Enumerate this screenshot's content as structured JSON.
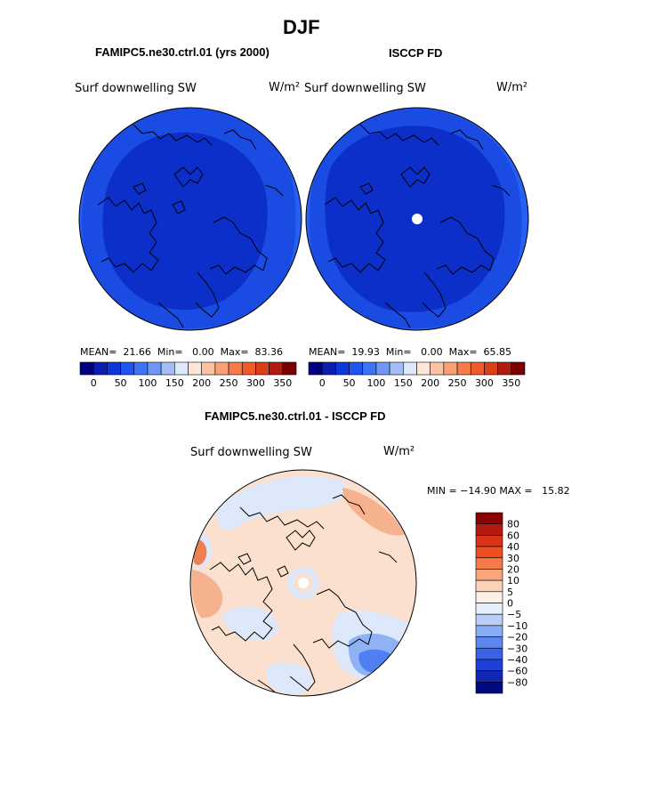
{
  "figure": {
    "title": "DJF",
    "panel_left_title": "FAMIPC5.ne30.ctrl.01 (yrs 2000)",
    "panel_right_title": "ISCCP FD",
    "panel_bottom_title": "FAMIPC5.ne30.ctrl.01 - ISCCP FD"
  },
  "colors": {
    "dark_blue": "#0a2fc8",
    "mid_blue": "#1c4fe6",
    "light_blue_ring": "#2d62f0",
    "diff_pos_light": "#fbe0cf",
    "diff_pos_mid": "#f6b18f",
    "diff_pos_strong": "#ef7f50",
    "diff_neg_light": "#dde9fb",
    "diff_neg_mid": "#8fb2f4",
    "diff_neg_strong": "#4f7ff0"
  },
  "chart_data": [
    {
      "type": "heatmap",
      "panel": "left",
      "title": "FAMIPC5.ne30.ctrl.01 (yrs 2000)",
      "variable_label": "Surf downwelling SW",
      "units_label": "W/m²",
      "stats_text": "MEAN=  21.66  Min=   0.00  Max=  83.36",
      "mean": 21.66,
      "min": 0.0,
      "max": 83.36,
      "colorbar": {
        "colors": [
          "#000080",
          "#0a1fb0",
          "#0f36d8",
          "#1f55ef",
          "#3c74f5",
          "#6e97f7",
          "#a3bdf8",
          "#dde9fb",
          "#fde6d6",
          "#fbc3a3",
          "#f8a076",
          "#f57b4c",
          "#ee5a2a",
          "#d9401a",
          "#b01d10",
          "#7d0000"
        ],
        "tick_labels": [
          "0",
          "50",
          "100",
          "150",
          "200",
          "250",
          "300",
          "350"
        ]
      }
    },
    {
      "type": "heatmap",
      "panel": "right",
      "title": "ISCCP FD",
      "variable_label": "Surf downwelling SW",
      "units_label": "W/m²",
      "stats_text": "MEAN=  19.93  Min=   0.00  Max=  65.85",
      "mean": 19.93,
      "min": 0.0,
      "max": 65.85,
      "colorbar": {
        "colors": [
          "#000080",
          "#0a1fb0",
          "#0f36d8",
          "#1f55ef",
          "#3c74f5",
          "#6e97f7",
          "#a3bdf8",
          "#dde9fb",
          "#fde6d6",
          "#fbc3a3",
          "#f8a076",
          "#f57b4c",
          "#ee5a2a",
          "#d9401a",
          "#b01d10",
          "#7d0000"
        ],
        "tick_labels": [
          "0",
          "50",
          "100",
          "150",
          "200",
          "250",
          "300",
          "350"
        ]
      }
    },
    {
      "type": "heatmap",
      "panel": "difference",
      "title": "FAMIPC5.ne30.ctrl.01 - ISCCP FD",
      "variable_label": "Surf downwelling SW",
      "units_label": "W/m²",
      "stats_text": "MIN = −14.90 MAX =   15.82",
      "min": -14.9,
      "max": 15.82,
      "colorbar": {
        "colors": [
          "#8b0000",
          "#b41a10",
          "#d93418",
          "#f04d22",
          "#f47a48",
          "#f7a57c",
          "#fbd2b8",
          "#fdf0e6",
          "#e6effc",
          "#b9cdf8",
          "#8aacf4",
          "#5d86ef",
          "#3a62e8",
          "#1f3fd8",
          "#1027b4",
          "#000a80"
        ],
        "tick_labels": [
          "80",
          "60",
          "40",
          "30",
          "20",
          "10",
          "5",
          "0",
          "−5",
          "−10",
          "−20",
          "−30",
          "−40",
          "−60",
          "−80"
        ]
      }
    }
  ]
}
